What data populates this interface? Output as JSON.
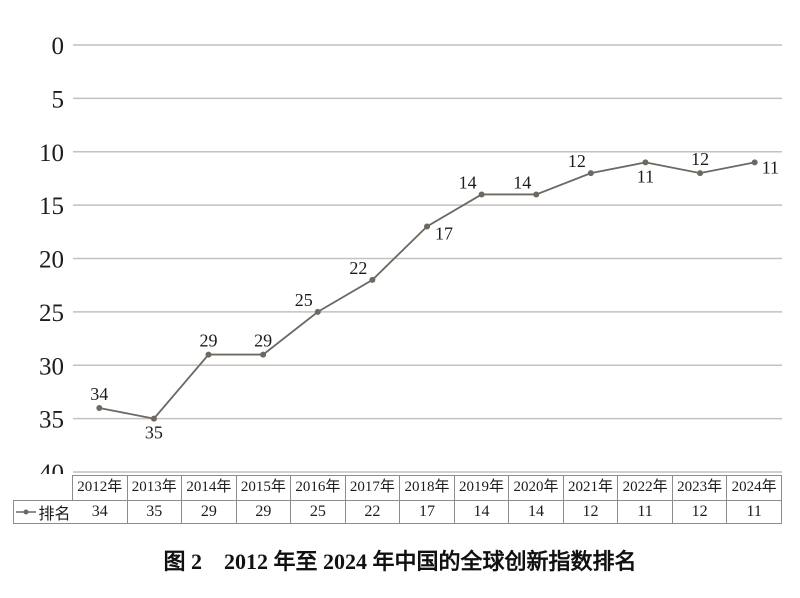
{
  "caption": "图 2　2012 年至 2024 年中国的全球创新指数排名",
  "chart_data": {
    "type": "line",
    "title": "",
    "categories": [
      "2012年",
      "2013年",
      "2014年",
      "2015年",
      "2016年",
      "2017年",
      "2018年",
      "2019年",
      "2020年",
      "2021年",
      "2022年",
      "2023年",
      "2024年"
    ],
    "series": [
      {
        "name": "排名",
        "values": [
          34,
          35,
          29,
          29,
          25,
          22,
          17,
          14,
          14,
          12,
          11,
          12,
          11
        ]
      }
    ],
    "xlabel": "",
    "ylabel": "",
    "y_axis": {
      "min": 0,
      "max": 40,
      "ticks": [
        0,
        5,
        10,
        15,
        20,
        25,
        30,
        35,
        40
      ],
      "inverted": true
    },
    "grid": true,
    "data_labels": true,
    "legend_position": "table-row-left",
    "label_placement": [
      "above",
      "below",
      "above",
      "above",
      "above-left",
      "above-left",
      "below-right",
      "above-left",
      "above-left",
      "above-left",
      "below",
      "above",
      "right"
    ],
    "colors": {
      "line": "#6d6862",
      "marker": "#6d6862",
      "gridline": "#c4c1be",
      "text": "#1c1c1c",
      "table_border": "#8c8c8c",
      "background": "#ffffff"
    }
  },
  "table": {
    "legend_label": "排名",
    "legend_marker": "line-dot-marker",
    "columns": [
      "2012年",
      "2013年",
      "2014年",
      "2015年",
      "2016年",
      "2017年",
      "2018年",
      "2019年",
      "2020年",
      "2021年",
      "2022年",
      "2023年",
      "2024年"
    ],
    "values": [
      "34",
      "35",
      "29",
      "29",
      "25",
      "22",
      "17",
      "14",
      "14",
      "12",
      "11",
      "12",
      "11"
    ]
  }
}
